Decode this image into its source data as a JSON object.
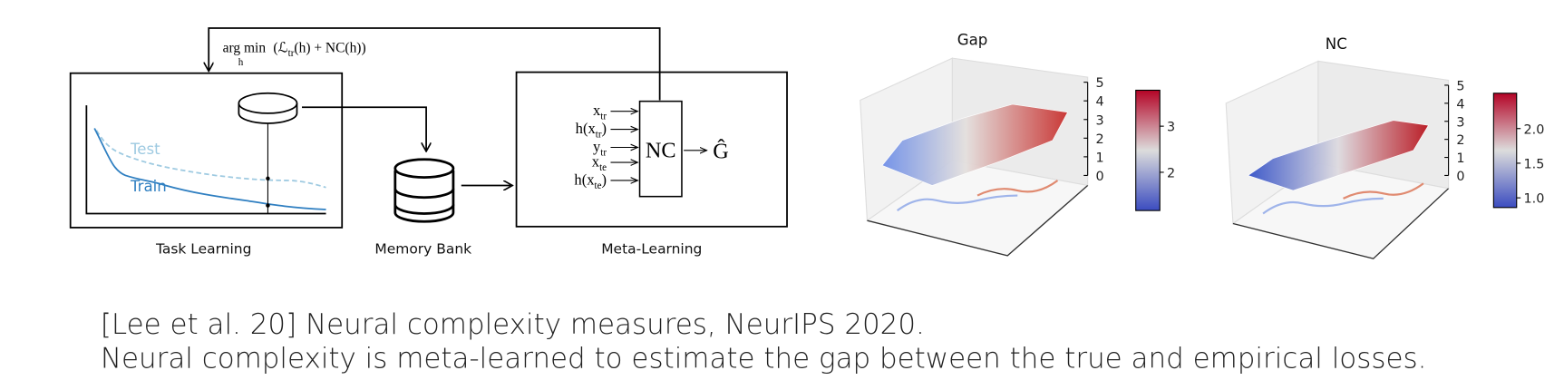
{
  "diagram": {
    "objective": {
      "op": "arg min",
      "op_sub": "h",
      "lead": "(ℒ",
      "lead_sub": "tr",
      "rest": "(h) + NC(h))"
    },
    "curves": {
      "test": "Test",
      "train": "Train"
    },
    "inputs": [
      {
        "base": "x",
        "sub": "tr",
        "tail": ""
      },
      {
        "base": "h(x",
        "sub": "tr",
        "tail": ")"
      },
      {
        "base": "y",
        "sub": "tr",
        "tail": ""
      },
      {
        "base": "x",
        "sub": "te",
        "tail": ""
      },
      {
        "base": "h(x",
        "sub": "te",
        "tail": ")"
      }
    ],
    "nc": "NC",
    "output": "Ĝ",
    "captions": [
      "Task Learning",
      "Memory Bank",
      "Meta-Learning"
    ]
  },
  "plots": [
    {
      "title": "Gap",
      "zlim": [
        0,
        5
      ],
      "zticks": [
        0,
        1,
        2,
        3,
        4,
        5
      ],
      "colorbar": {
        "lim": [
          1.17,
          3.78
        ],
        "ticks": [
          2,
          3
        ]
      }
    },
    {
      "title": "NC",
      "zlim": [
        0,
        5
      ],
      "zticks": [
        0,
        1,
        2,
        3,
        4,
        5
      ],
      "colorbar": {
        "lim": [
          0.86,
          2.51
        ],
        "ticks": [
          {
            "value": 1,
            "label": "1.0"
          },
          {
            "value": 1.5,
            "label": "1.5"
          },
          {
            "value": 2,
            "label": "2.0"
          }
        ]
      }
    }
  ],
  "caption": {
    "line1": "[Lee et al. 20] Neural complexity measures, NeurIPS 2020.",
    "line2": "Neural complexity is meta-learned to estimate the gap between the true and empirical losses."
  }
}
